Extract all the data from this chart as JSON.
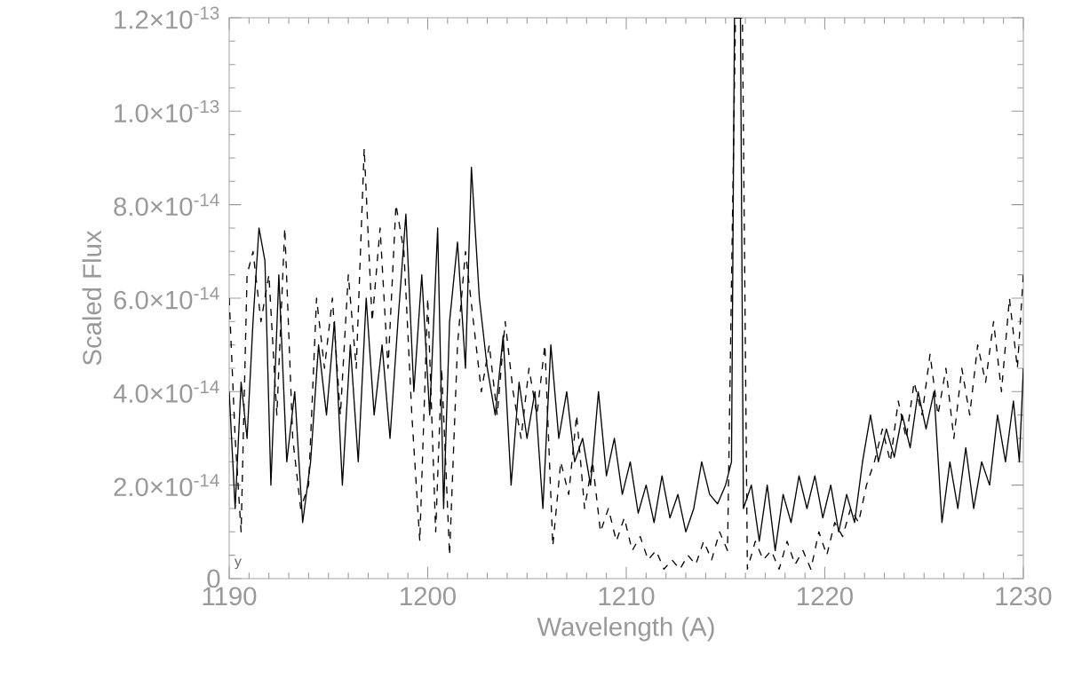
{
  "chart_data": {
    "type": "line",
    "xlabel": "Wavelength (A)",
    "ylabel": "Scaled Flux",
    "annotations": [
      "y"
    ],
    "xlim": [
      1190,
      1230
    ],
    "xticks": [
      1190,
      1200,
      1210,
      1220,
      1230
    ],
    "ylim": [
      0,
      1.2e-13
    ],
    "yticks": [
      0,
      {
        "value": 2e-14,
        "label": "2.0×10$^{-14}$"
      },
      {
        "value": 4e-14,
        "label": "4.0×10$^{-14}$"
      },
      {
        "value": 6e-14,
        "label": "6.0×10$^{-14}$"
      },
      {
        "value": 8e-14,
        "label": "8.0×10$^{-14}$"
      },
      {
        "value": 1e-13,
        "label": "1.0×10$^{-13}$"
      },
      {
        "value": 1.2e-13,
        "label": "1.2×10$^{-13}$"
      }
    ],
    "marker": "none",
    "series": [
      {
        "color": "#000000",
        "line_style": "solid",
        "x": [
          1190.0,
          1190.3,
          1190.6,
          1190.9,
          1191.2,
          1191.5,
          1191.8,
          1192.1,
          1192.5,
          1192.9,
          1193.3,
          1193.7,
          1194.1,
          1194.5,
          1194.9,
          1195.3,
          1195.7,
          1196.1,
          1196.5,
          1196.9,
          1197.3,
          1197.7,
          1198.1,
          1198.5,
          1198.9,
          1199.3,
          1199.7,
          1200.1,
          1200.5,
          1200.8,
          1201.1,
          1201.5,
          1201.9,
          1202.2,
          1202.6,
          1203.0,
          1203.4,
          1203.8,
          1204.2,
          1204.6,
          1205.0,
          1205.4,
          1205.8,
          1206.2,
          1206.6,
          1207.0,
          1207.4,
          1207.8,
          1208.2,
          1208.6,
          1209.0,
          1209.4,
          1209.8,
          1210.2,
          1210.6,
          1211.0,
          1211.4,
          1211.8,
          1212.2,
          1212.6,
          1213.0,
          1213.4,
          1213.8,
          1214.2,
          1214.6,
          1215.0,
          1215.3,
          1215.45,
          1215.75,
          1215.9,
          1216.3,
          1216.7,
          1217.1,
          1217.5,
          1217.9,
          1218.3,
          1218.7,
          1219.1,
          1219.5,
          1219.9,
          1220.3,
          1220.7,
          1221.1,
          1221.5,
          1221.9,
          1222.3,
          1222.7,
          1223.1,
          1223.5,
          1223.9,
          1224.3,
          1224.7,
          1225.1,
          1225.5,
          1225.9,
          1226.3,
          1226.7,
          1227.1,
          1227.5,
          1227.9,
          1228.3,
          1228.7,
          1229.1,
          1229.5,
          1229.8,
          1230.0
        ],
        "values": [
          4e-14,
          1.5e-14,
          4.2e-14,
          3e-14,
          5.5e-14,
          7.5e-14,
          6.8e-14,
          2e-14,
          6.5e-14,
          2.5e-14,
          4e-14,
          1.2e-14,
          2.5e-14,
          5e-14,
          3.5e-14,
          5.5e-14,
          2e-14,
          5e-14,
          2.5e-14,
          6e-14,
          3.5e-14,
          5e-14,
          3e-14,
          5.5e-14,
          7.8e-14,
          4e-14,
          6.5e-14,
          3.5e-14,
          7.5e-14,
          1.5e-14,
          5.5e-14,
          7.2e-14,
          4.5e-14,
          8.8e-14,
          6e-14,
          4.5e-14,
          3.5e-14,
          5.2e-14,
          2e-14,
          4.2e-14,
          3e-14,
          4e-14,
          1.5e-14,
          5e-14,
          3e-14,
          4e-14,
          2.5e-14,
          3e-14,
          2e-14,
          4e-14,
          2.2e-14,
          3e-14,
          1.8e-14,
          2.5e-14,
          1.4e-14,
          2e-14,
          1.2e-14,
          2.2e-14,
          1.3e-14,
          1.8e-14,
          1e-14,
          1.5e-14,
          2.5e-14,
          1.8e-14,
          1.6e-14,
          2e-14,
          2.5e-14,
          1.2e-13,
          1.2e-13,
          1.5e-14,
          2e-14,
          8e-15,
          2e-14,
          6e-15,
          1.8e-14,
          1.2e-14,
          2.2e-14,
          1.5e-14,
          2.2e-14,
          1.3e-14,
          2e-14,
          1e-14,
          1.8e-14,
          1.2e-14,
          2.5e-14,
          3.5e-14,
          2.5e-14,
          3.2e-14,
          2.6e-14,
          3.5e-14,
          2.8e-14,
          4e-14,
          3.2e-14,
          4e-14,
          1.2e-14,
          2.5e-14,
          1.5e-14,
          2.8e-14,
          1.5e-14,
          2.5e-14,
          2e-14,
          3.5e-14,
          2.5e-14,
          3.8e-14,
          2.5e-14,
          4.5e-14
        ]
      },
      {
        "color": "#000000",
        "line_style": "dashed",
        "x": [
          1190.0,
          1190.3,
          1190.6,
          1190.9,
          1191.2,
          1191.6,
          1192.0,
          1192.4,
          1192.8,
          1193.2,
          1193.6,
          1194.0,
          1194.4,
          1194.8,
          1195.2,
          1195.6,
          1196.0,
          1196.4,
          1196.8,
          1197.2,
          1197.6,
          1198.0,
          1198.4,
          1198.8,
          1199.2,
          1199.6,
          1200.0,
          1200.4,
          1200.7,
          1201.1,
          1201.5,
          1201.9,
          1202.3,
          1202.7,
          1203.1,
          1203.5,
          1203.9,
          1204.3,
          1204.7,
          1205.1,
          1205.5,
          1205.9,
          1206.3,
          1206.7,
          1207.1,
          1207.5,
          1207.9,
          1208.3,
          1208.7,
          1209.1,
          1209.5,
          1209.9,
          1210.3,
          1210.7,
          1211.1,
          1211.5,
          1211.9,
          1212.3,
          1212.7,
          1213.1,
          1213.5,
          1213.9,
          1214.3,
          1214.7,
          1215.1,
          1215.5,
          1215.85,
          1216.1,
          1216.5,
          1216.9,
          1217.3,
          1217.7,
          1218.1,
          1218.5,
          1218.9,
          1219.3,
          1219.7,
          1220.1,
          1220.5,
          1220.9,
          1221.3,
          1221.7,
          1222.1,
          1222.5,
          1222.9,
          1223.3,
          1223.7,
          1224.1,
          1224.5,
          1224.9,
          1225.3,
          1225.7,
          1226.1,
          1226.5,
          1226.9,
          1227.3,
          1227.7,
          1228.1,
          1228.5,
          1228.9,
          1229.3,
          1229.7,
          1230.0
        ],
        "values": [
          6e-14,
          3e-14,
          1e-14,
          6.5e-14,
          7e-14,
          5.5e-14,
          6.5e-14,
          3.5e-14,
          7.5e-14,
          3e-14,
          1.5e-14,
          2e-14,
          6e-14,
          4.5e-14,
          6e-14,
          3.5e-14,
          6.5e-14,
          4.5e-14,
          9.2e-14,
          5.5e-14,
          7.5e-14,
          4.5e-14,
          8e-14,
          7e-14,
          3.5e-14,
          8e-15,
          6e-14,
          1e-14,
          4.5e-14,
          5e-15,
          5e-14,
          7e-14,
          5.5e-14,
          4e-14,
          5e-14,
          3.5e-14,
          5.5e-14,
          4e-14,
          3e-14,
          4.5e-14,
          3.5e-14,
          5e-14,
          7e-15,
          2.5e-14,
          1.8e-14,
          3.5e-14,
          1.5e-14,
          2.5e-14,
          1e-14,
          1.5e-14,
          8e-15,
          1.3e-14,
          6e-15,
          9e-15,
          4e-15,
          6e-15,
          2e-15,
          4e-15,
          2e-15,
          5e-15,
          3e-15,
          8e-15,
          4e-15,
          1e-14,
          6e-15,
          1.2e-13,
          1.2e-13,
          2e-15,
          8e-15,
          4e-15,
          6e-15,
          2e-15,
          8e-15,
          3e-15,
          6e-15,
          2e-15,
          1e-14,
          5e-15,
          1.2e-14,
          9e-15,
          1.5e-14,
          1.2e-14,
          2e-14,
          2.5e-14,
          3.2e-14,
          2.5e-14,
          3.8e-14,
          3e-14,
          4.2e-14,
          3.5e-14,
          4.8e-14,
          3.5e-14,
          4.5e-14,
          3e-14,
          4.5e-14,
          3.5e-14,
          5e-14,
          4.2e-14,
          5.5e-14,
          4e-14,
          6e-14,
          4.5e-14,
          6.5e-14
        ]
      }
    ]
  }
}
